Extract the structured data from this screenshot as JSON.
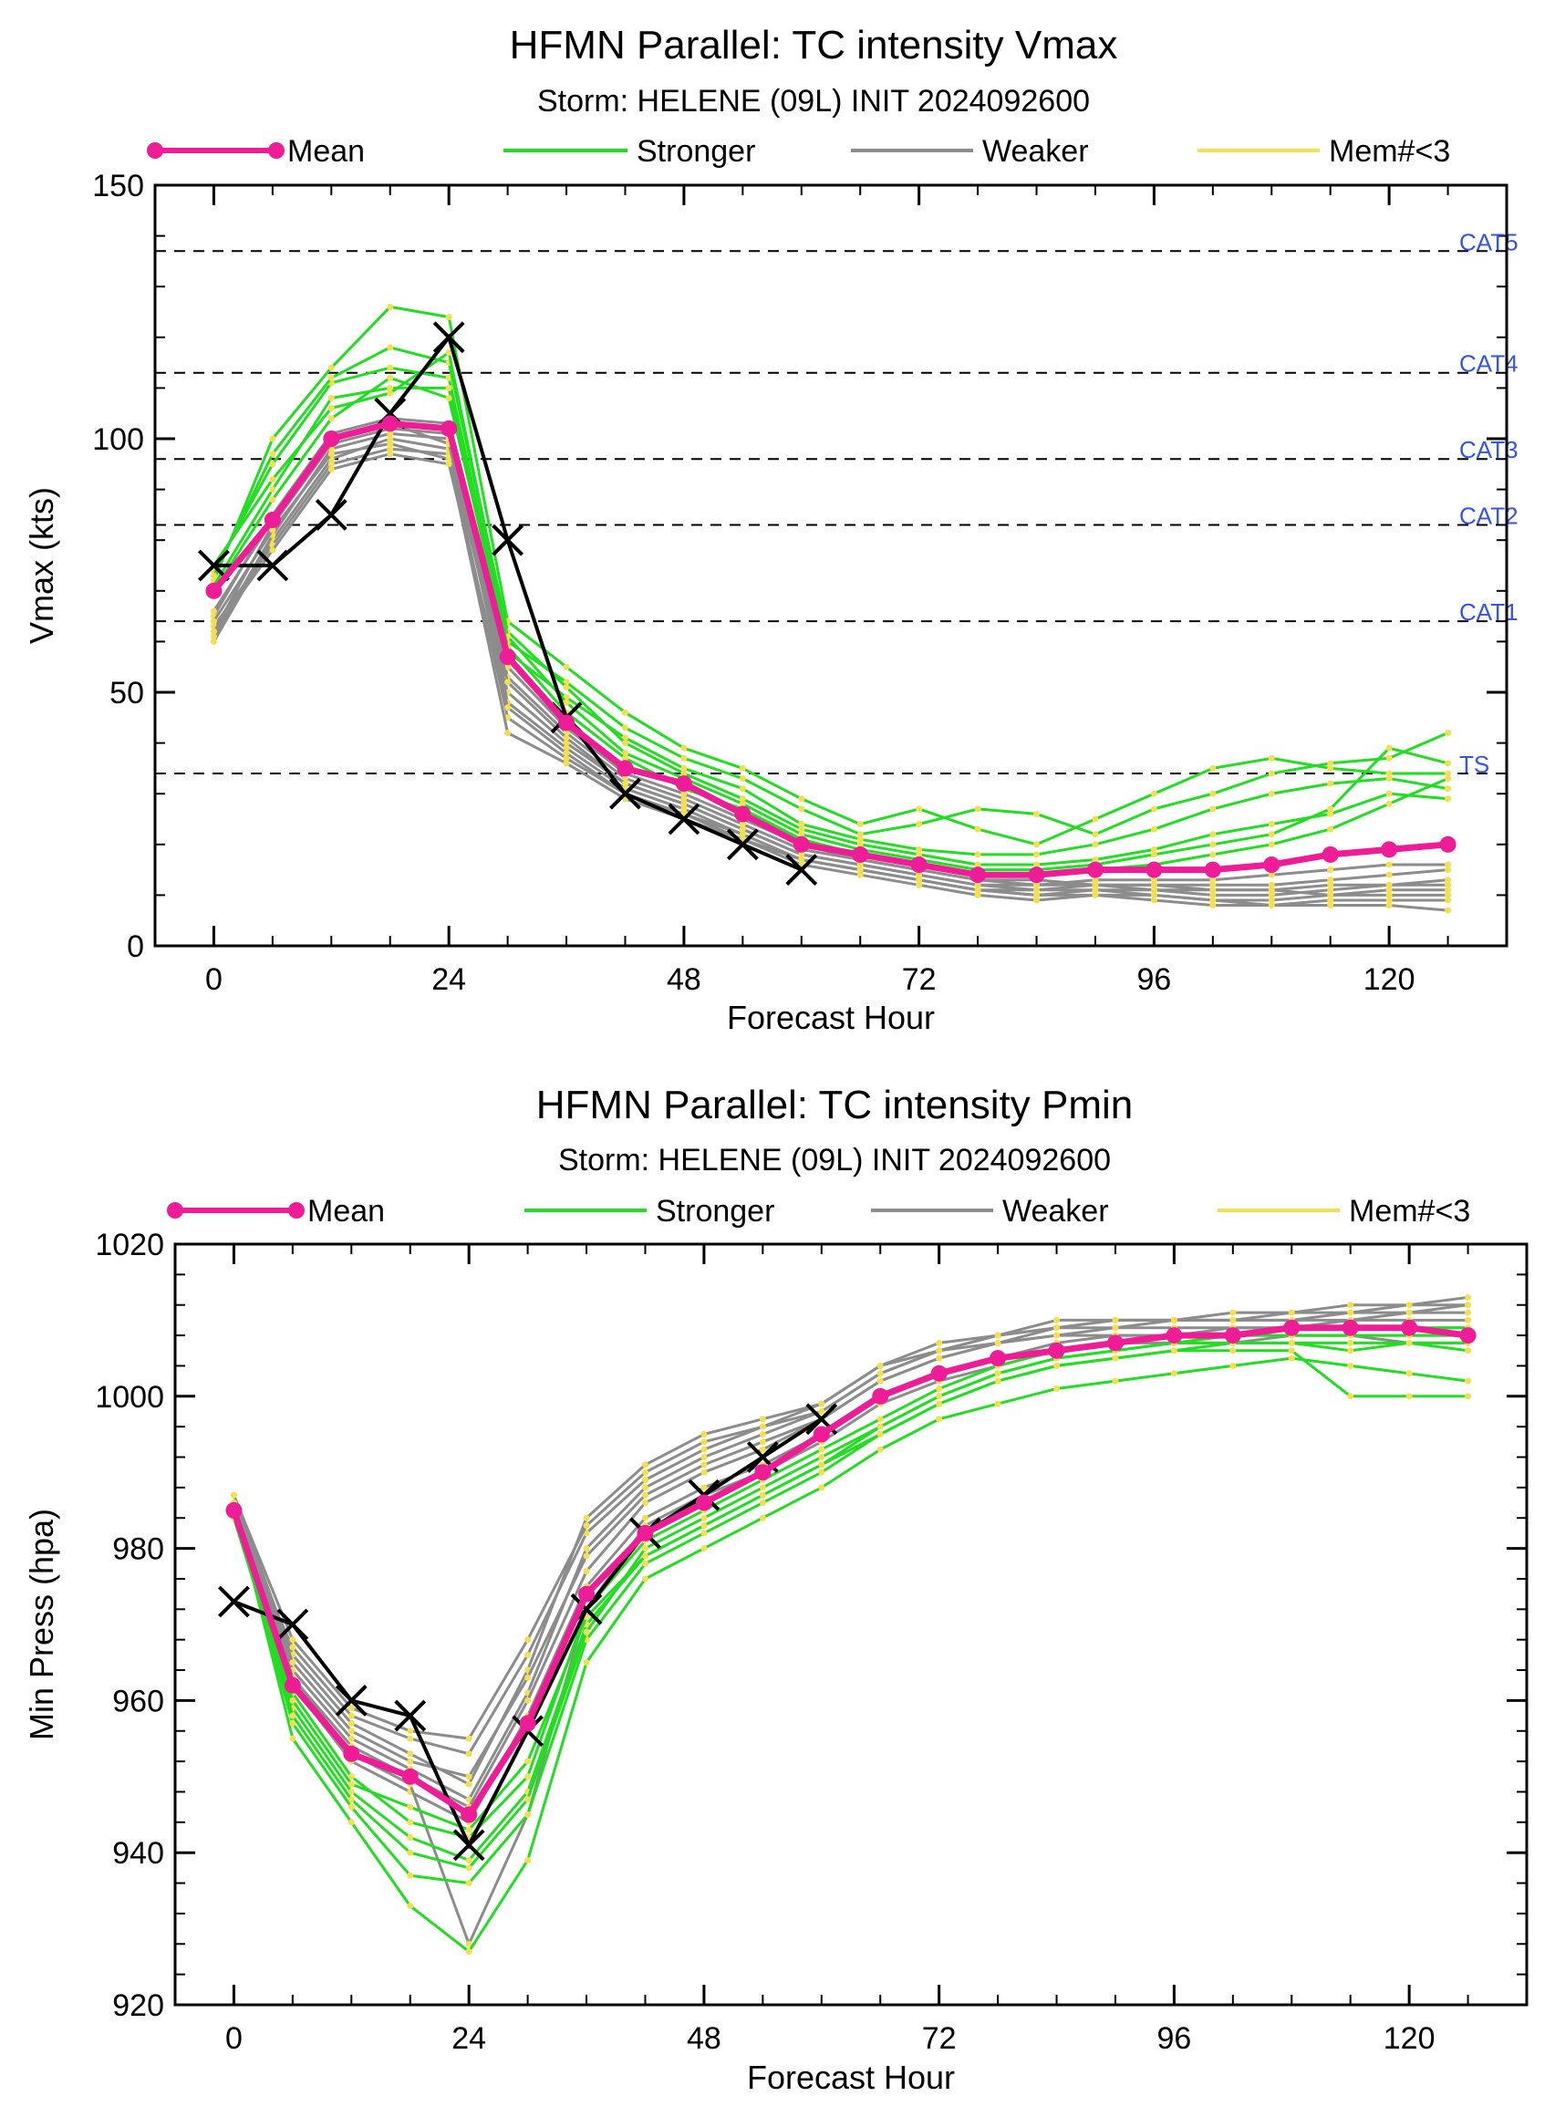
{
  "chart_data": [
    {
      "type": "line",
      "title": "HFMN Parallel: TC intensity Vmax",
      "subtitle": "Storm: HELENE (09L) INIT 2024092600",
      "xlabel": "Forecast Hour",
      "ylabel": "Vmax (kts)",
      "xlim": [
        -6,
        132
      ],
      "ylim": [
        0,
        150
      ],
      "xticks": [
        0,
        24,
        48,
        72,
        96,
        120
      ],
      "yticks": [
        0,
        50,
        100,
        150
      ],
      "legend": {
        "placement": "top",
        "entries": [
          {
            "label": "Mean",
            "color": "#ee1c96"
          },
          {
            "label": "Stronger",
            "color": "#22dd22"
          },
          {
            "label": "Weaker",
            "color": "#8c8c8c"
          },
          {
            "label": "Mem#<3",
            "color": "#f2e050"
          }
        ]
      },
      "reference_lines": [
        {
          "label": "CAT5",
          "value": 137
        },
        {
          "label": "CAT4",
          "value": 113
        },
        {
          "label": "CAT3",
          "value": 96
        },
        {
          "label": "CAT2",
          "value": 83
        },
        {
          "label": "CAT1",
          "value": 64
        },
        {
          "label": "TS",
          "value": 34
        }
      ],
      "mean": {
        "x": [
          0,
          6,
          12,
          18,
          24,
          30,
          36,
          42,
          48,
          54,
          60,
          66,
          72,
          78,
          84,
          90,
          96,
          102,
          108,
          114,
          120,
          126
        ],
        "y": [
          70,
          84,
          100,
          103,
          102,
          57,
          44,
          35,
          32,
          26,
          20,
          18,
          16,
          14,
          14,
          15,
          15,
          15,
          16,
          18,
          19,
          20
        ]
      },
      "best_track": {
        "x": [
          0,
          6,
          12,
          18,
          24,
          30,
          36,
          42,
          48,
          54,
          60
        ],
        "y": [
          75,
          75,
          85,
          105,
          120,
          80,
          45,
          30,
          25,
          20,
          15
        ]
      },
      "stronger_members": [
        [
          72,
          100,
          114,
          126,
          124,
          64,
          55,
          46,
          39,
          35,
          29,
          24,
          27,
          23,
          20,
          25,
          30,
          35,
          37,
          35,
          34,
          34
        ],
        [
          74,
          95,
          111,
          114,
          112,
          60,
          52,
          43,
          37,
          33,
          27,
          22,
          24,
          27,
          26,
          22,
          27,
          30,
          34,
          36,
          37,
          42
        ],
        [
          71,
          90,
          108,
          110,
          110,
          58,
          49,
          41,
          35,
          31,
          24,
          21,
          19,
          18,
          18,
          20,
          23,
          27,
          30,
          32,
          33,
          31
        ],
        [
          73,
          97,
          112,
          118,
          115,
          62,
          51,
          40,
          34,
          29,
          23,
          20,
          18,
          16,
          16,
          17,
          19,
          22,
          24,
          26,
          30,
          29
        ],
        [
          75,
          92,
          106,
          109,
          117,
          61,
          48,
          38,
          33,
          28,
          22,
          19,
          17,
          15,
          15,
          16,
          18,
          20,
          22,
          27,
          39,
          36
        ],
        [
          70,
          88,
          104,
          112,
          108,
          59,
          46,
          37,
          31,
          27,
          21,
          18,
          16,
          14,
          14,
          15,
          16,
          18,
          20,
          23,
          28,
          33
        ]
      ],
      "weaker_members": [
        [
          60,
          80,
          96,
          100,
          98,
          50,
          40,
          32,
          28,
          23,
          18,
          16,
          14,
          12,
          12,
          13,
          13,
          13,
          14,
          15,
          16,
          16
        ],
        [
          61,
          81,
          98,
          101,
          100,
          48,
          39,
          31,
          27,
          22,
          17,
          15,
          13,
          11,
          11,
          12,
          12,
          12,
          12,
          13,
          14,
          15
        ],
        [
          62,
          83,
          99,
          102,
          101,
          53,
          42,
          33,
          29,
          24,
          19,
          17,
          15,
          13,
          13,
          12,
          11,
          11,
          11,
          12,
          12,
          13
        ],
        [
          63,
          79,
          95,
          98,
          97,
          45,
          37,
          30,
          26,
          21,
          17,
          15,
          13,
          11,
          10,
          11,
          11,
          10,
          10,
          11,
          12,
          12
        ],
        [
          65,
          85,
          101,
          104,
          103,
          55,
          43,
          34,
          30,
          25,
          20,
          17,
          15,
          13,
          12,
          12,
          12,
          11,
          11,
          10,
          11,
          11
        ],
        [
          64,
          82,
          97,
          99,
          96,
          42,
          36,
          29,
          25,
          21,
          16,
          14,
          12,
          10,
          9,
          10,
          10,
          9,
          9,
          10,
          10,
          10
        ],
        [
          66,
          84,
          100,
          103,
          99,
          52,
          41,
          32,
          28,
          23,
          18,
          16,
          14,
          12,
          11,
          11,
          10,
          9,
          8,
          9,
          9,
          9
        ],
        [
          62,
          78,
          94,
          97,
          95,
          47,
          38,
          30,
          26,
          22,
          17,
          15,
          13,
          11,
          10,
          10,
          9,
          8,
          8,
          8,
          8,
          7
        ]
      ]
    },
    {
      "type": "line",
      "title": "HFMN Parallel: TC intensity Pmin",
      "subtitle": "Storm: HELENE (09L) INIT 2024092600",
      "xlabel": "Forecast Hour",
      "ylabel": "Min Press (hpa)",
      "xlim": [
        -6,
        132
      ],
      "ylim": [
        920,
        1020
      ],
      "xticks": [
        0,
        24,
        48,
        72,
        96,
        120
      ],
      "yticks": [
        920,
        940,
        960,
        980,
        1000,
        1020
      ],
      "legend": {
        "placement": "top",
        "entries": [
          {
            "label": "Mean",
            "color": "#ee1c96"
          },
          {
            "label": "Stronger",
            "color": "#22dd22"
          },
          {
            "label": "Weaker",
            "color": "#8c8c8c"
          },
          {
            "label": "Mem#<3",
            "color": "#f2e050"
          }
        ]
      },
      "mean": {
        "x": [
          0,
          6,
          12,
          18,
          24,
          30,
          36,
          42,
          48,
          54,
          60,
          66,
          72,
          78,
          84,
          90,
          96,
          102,
          108,
          114,
          120,
          126
        ],
        "y": [
          985,
          962,
          953,
          950,
          945,
          957,
          974,
          982,
          986,
          990,
          995,
          1000,
          1003,
          1005,
          1006,
          1007,
          1008,
          1008,
          1009,
          1009,
          1009,
          1008
        ]
      },
      "best_track": {
        "x": [
          0,
          6,
          12,
          18,
          24,
          30,
          36,
          42,
          48,
          54,
          60
        ],
        "y": [
          973,
          970,
          960,
          958,
          941,
          956,
          972,
          982,
          987,
          992,
          997
        ]
      },
      "stronger_members": [
        [
          986,
          955,
          944,
          933,
          927,
          939,
          965,
          976,
          980,
          984,
          988,
          993,
          997,
          999,
          1001,
          1002,
          1003,
          1004,
          1005,
          1004,
          1003,
          1002
        ],
        [
          985,
          957,
          946,
          937,
          936,
          945,
          968,
          978,
          982,
          986,
          990,
          995,
          999,
          1002,
          1004,
          1005,
          1006,
          1006,
          1006,
          1000,
          1000,
          1000
        ],
        [
          984,
          959,
          948,
          942,
          939,
          948,
          970,
          979,
          983,
          987,
          991,
          996,
          1000,
          1003,
          1005,
          1006,
          1007,
          1007,
          1007,
          1006,
          1007,
          1006
        ],
        [
          986,
          961,
          950,
          944,
          942,
          950,
          972,
          981,
          985,
          989,
          993,
          997,
          1001,
          1004,
          1006,
          1007,
          1008,
          1008,
          1008,
          1008,
          1008,
          1008
        ],
        [
          985,
          958,
          947,
          940,
          938,
          947,
          969,
          980,
          984,
          988,
          992,
          996,
          1000,
          1003,
          1005,
          1006,
          1007,
          1008,
          1009,
          1009,
          1009,
          1009
        ],
        [
          984,
          960,
          949,
          946,
          943,
          952,
          971,
          979,
          983,
          987,
          991,
          995,
          999,
          1002,
          1004,
          1005,
          1006,
          1007,
          1007,
          1007,
          1007,
          1007
        ]
      ],
      "weaker_members": [
        [
          987,
          966,
          957,
          953,
          949,
          964,
          984,
          991,
          995,
          997,
          999,
          1004,
          1006,
          1008,
          1009,
          1010,
          1010,
          1010,
          1010,
          1010,
          1011,
          1012
        ],
        [
          986,
          964,
          955,
          951,
          947,
          961,
          980,
          988,
          992,
          995,
          998,
          1003,
          1006,
          1008,
          1010,
          1010,
          1010,
          1011,
          1011,
          1012,
          1012,
          1013
        ],
        [
          985,
          963,
          954,
          950,
          946,
          960,
          977,
          986,
          990,
          993,
          997,
          1002,
          1005,
          1007,
          1009,
          1009,
          1010,
          1010,
          1011,
          1011,
          1012,
          1012
        ],
        [
          984,
          967,
          958,
          955,
          953,
          966,
          982,
          989,
          993,
          996,
          999,
          1004,
          1007,
          1008,
          1009,
          1010,
          1010,
          1010,
          1010,
          1011,
          1011,
          1011
        ],
        [
          986,
          965,
          956,
          952,
          950,
          963,
          979,
          987,
          991,
          994,
          997,
          1002,
          1005,
          1007,
          1008,
          1009,
          1009,
          1009,
          1009,
          1010,
          1010,
          1010
        ],
        [
          985,
          962,
          952,
          948,
          944,
          958,
          975,
          984,
          988,
          991,
          995,
          1000,
          1003,
          1005,
          1007,
          1008,
          1008,
          1009,
          1009,
          1009,
          1009,
          1009
        ],
        [
          987,
          968,
          959,
          956,
          955,
          968,
          983,
          990,
          994,
          996,
          998,
          1003,
          1006,
          1007,
          1008,
          1008,
          1008,
          1008,
          1008,
          1008,
          1008,
          1008
        ],
        [
          986,
          963,
          953,
          949,
          928,
          945,
          972,
          983,
          987,
          990,
          994,
          999,
          1002,
          1004,
          1006,
          1007,
          1007,
          1007,
          1008,
          1008,
          1007,
          1007
        ]
      ]
    }
  ]
}
